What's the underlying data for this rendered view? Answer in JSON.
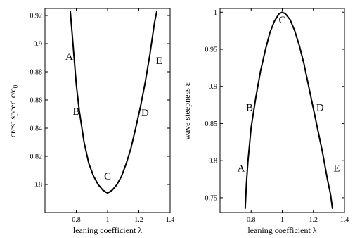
{
  "chart_data": [
    {
      "type": "line",
      "xlabel": "leaning coefficient λ",
      "ylabel_main": "crest speed c/c",
      "ylabel_sub": "0",
      "xlim": [
        0.6,
        1.4
      ],
      "ylim": [
        0.78,
        0.925
      ],
      "xticks": [
        0.8,
        1,
        1.2,
        1.4
      ],
      "xtick_labels": [
        "0.8",
        "1",
        "1.2",
        "1.4"
      ],
      "yticks": [
        0.8,
        0.82,
        0.84,
        0.86,
        0.88,
        0.9,
        0.92
      ],
      "ytick_labels": [
        "0.8",
        "0.82",
        "0.84",
        "0.86",
        "0.88",
        "0.9",
        "0.92"
      ],
      "series": [
        {
          "x": [
            0.762,
            0.78,
            0.8,
            0.82,
            0.85,
            0.88,
            0.91,
            0.94,
            0.97,
            0.99,
            1.0,
            1.01,
            1.03,
            1.06,
            1.09,
            1.12,
            1.15,
            1.18,
            1.21,
            1.24,
            1.27,
            1.3,
            1.315
          ],
          "y": [
            0.923,
            0.898,
            0.871,
            0.852,
            0.83,
            0.815,
            0.806,
            0.8,
            0.796,
            0.7945,
            0.794,
            0.7945,
            0.796,
            0.8,
            0.806,
            0.815,
            0.826,
            0.84,
            0.855,
            0.872,
            0.892,
            0.915,
            0.923
          ]
        }
      ],
      "annotations": [
        {
          "text": "A",
          "x": 0.755,
          "y": 0.891
        },
        {
          "text": "B",
          "x": 0.8,
          "y": 0.852
        },
        {
          "text": "C",
          "x": 1.0,
          "y": 0.806
        },
        {
          "text": "D",
          "x": 1.24,
          "y": 0.851
        },
        {
          "text": "E",
          "x": 1.33,
          "y": 0.888
        }
      ]
    },
    {
      "type": "line",
      "xlabel": "leaning coefficient λ",
      "ylabel": "wave steepness ε",
      "xlim": [
        0.6,
        1.4
      ],
      "ylim": [
        0.73,
        1.005
      ],
      "xticks": [
        0.8,
        1,
        1.2,
        1.4
      ],
      "xtick_labels": [
        "0.8",
        "1",
        "1.2",
        "1.4"
      ],
      "yticks": [
        0.75,
        0.8,
        0.85,
        0.9,
        0.95,
        1
      ],
      "ytick_labels": [
        "0.75",
        "0.8",
        "0.85",
        "0.9",
        "0.95",
        "1"
      ],
      "series": [
        {
          "x": [
            0.762,
            0.77,
            0.78,
            0.8,
            0.83,
            0.86,
            0.89,
            0.92,
            0.95,
            0.98,
            1.0,
            1.02,
            1.05,
            1.08,
            1.11,
            1.14,
            1.17,
            1.2,
            1.23,
            1.26,
            1.29,
            1.31,
            1.323
          ],
          "y": [
            0.735,
            0.77,
            0.8,
            0.845,
            0.885,
            0.92,
            0.948,
            0.972,
            0.988,
            0.998,
            1.0,
            0.998,
            0.99,
            0.975,
            0.955,
            0.93,
            0.9,
            0.87,
            0.84,
            0.81,
            0.775,
            0.755,
            0.735
          ]
        }
      ],
      "annotations": [
        {
          "text": "A",
          "x": 0.735,
          "y": 0.79
        },
        {
          "text": "B",
          "x": 0.79,
          "y": 0.872
        },
        {
          "text": "C",
          "x": 1.0,
          "y": 0.99
        },
        {
          "text": "D",
          "x": 1.243,
          "y": 0.872
        },
        {
          "text": "E",
          "x": 1.35,
          "y": 0.79
        }
      ]
    }
  ]
}
